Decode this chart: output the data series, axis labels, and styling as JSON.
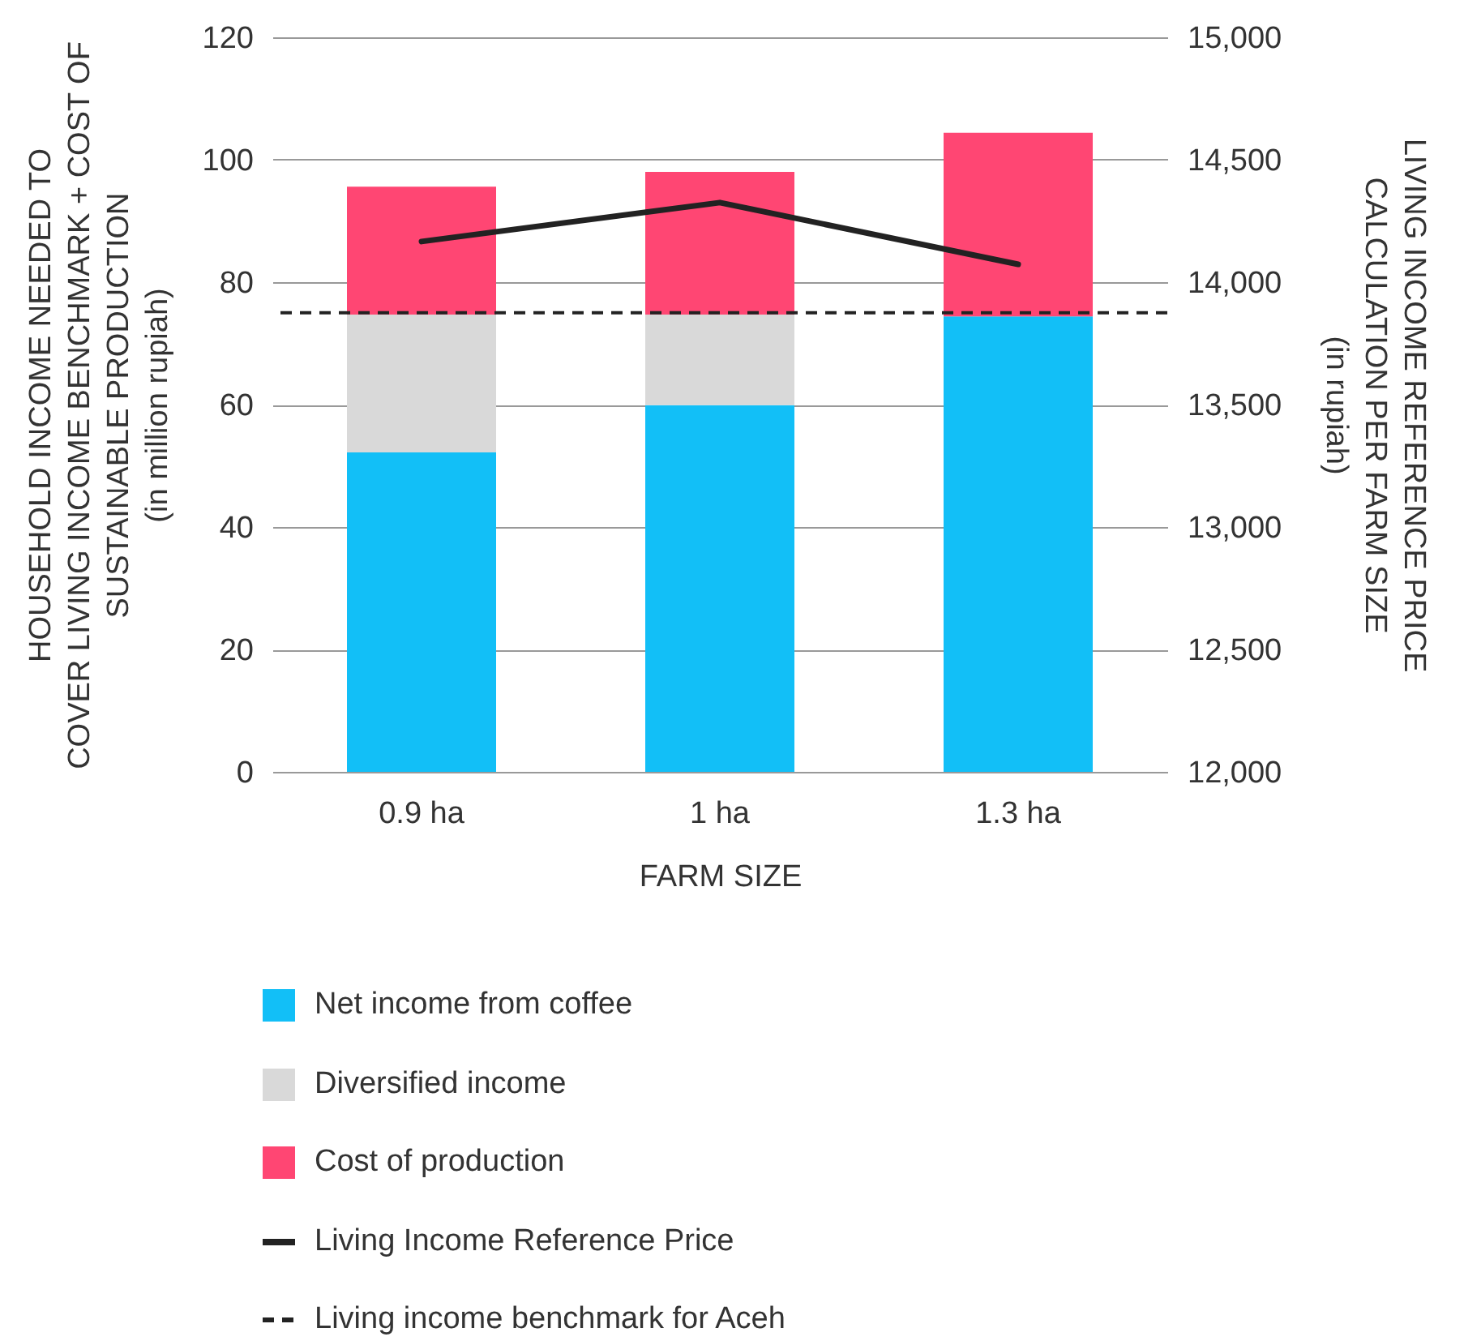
{
  "chart_data": {
    "type": "bar",
    "stacked": true,
    "categories": [
      "0.9 ha",
      "1 ha",
      "1.3 ha"
    ],
    "xlabel": "FARM SIZE",
    "ylabel": "HOUSEHOLD INCOME NEEDED TO\nCOVER LIVING INCOME BENCHMARK + COST OF\nSUSTAINABLE PRODUCTION\n(in million rupiah)",
    "y2label": "LIVING INCOME REFERENCE PRICE\nCALCULATION PER FARM SIZE\n(in rupiah)",
    "ylim": [
      0,
      120
    ],
    "yticks": [
      0,
      20,
      40,
      60,
      80,
      100,
      120
    ],
    "y2lim": [
      12000,
      15000
    ],
    "y2ticks": [
      {
        "value": 12000,
        "label": "12,000"
      },
      {
        "value": 12500,
        "label": "12,500"
      },
      {
        "value": 13000,
        "label": "13,000"
      },
      {
        "value": 13500,
        "label": "13,500"
      },
      {
        "value": 14000,
        "label": "14,000"
      },
      {
        "value": 14500,
        "label": "14,500"
      },
      {
        "value": 15000,
        "label": "15,000"
      }
    ],
    "series": [
      {
        "name": "Net income from coffee",
        "color": "#12bff7",
        "values": [
          52.2,
          59.9,
          74.4
        ]
      },
      {
        "name": "Diversified income",
        "color": "#d9d9d9",
        "values": [
          22.5,
          14.8,
          0
        ]
      },
      {
        "name": "Cost of production",
        "color": "#ff4673",
        "values": [
          20.9,
          23.3,
          30
        ]
      },
      {
        "name": "Living Income Reference Price",
        "type": "line",
        "axis": "y2",
        "color": "#222222",
        "values": [
          14166,
          14325,
          14073
        ],
        "marker": "none"
      }
    ],
    "ref_lines": [
      {
        "axis": "y",
        "value": 75,
        "label": "Living income benchmark for Aceh",
        "color": "#222222",
        "line_style": "dashed"
      }
    ],
    "grid": "y",
    "legend": "bottom"
  }
}
